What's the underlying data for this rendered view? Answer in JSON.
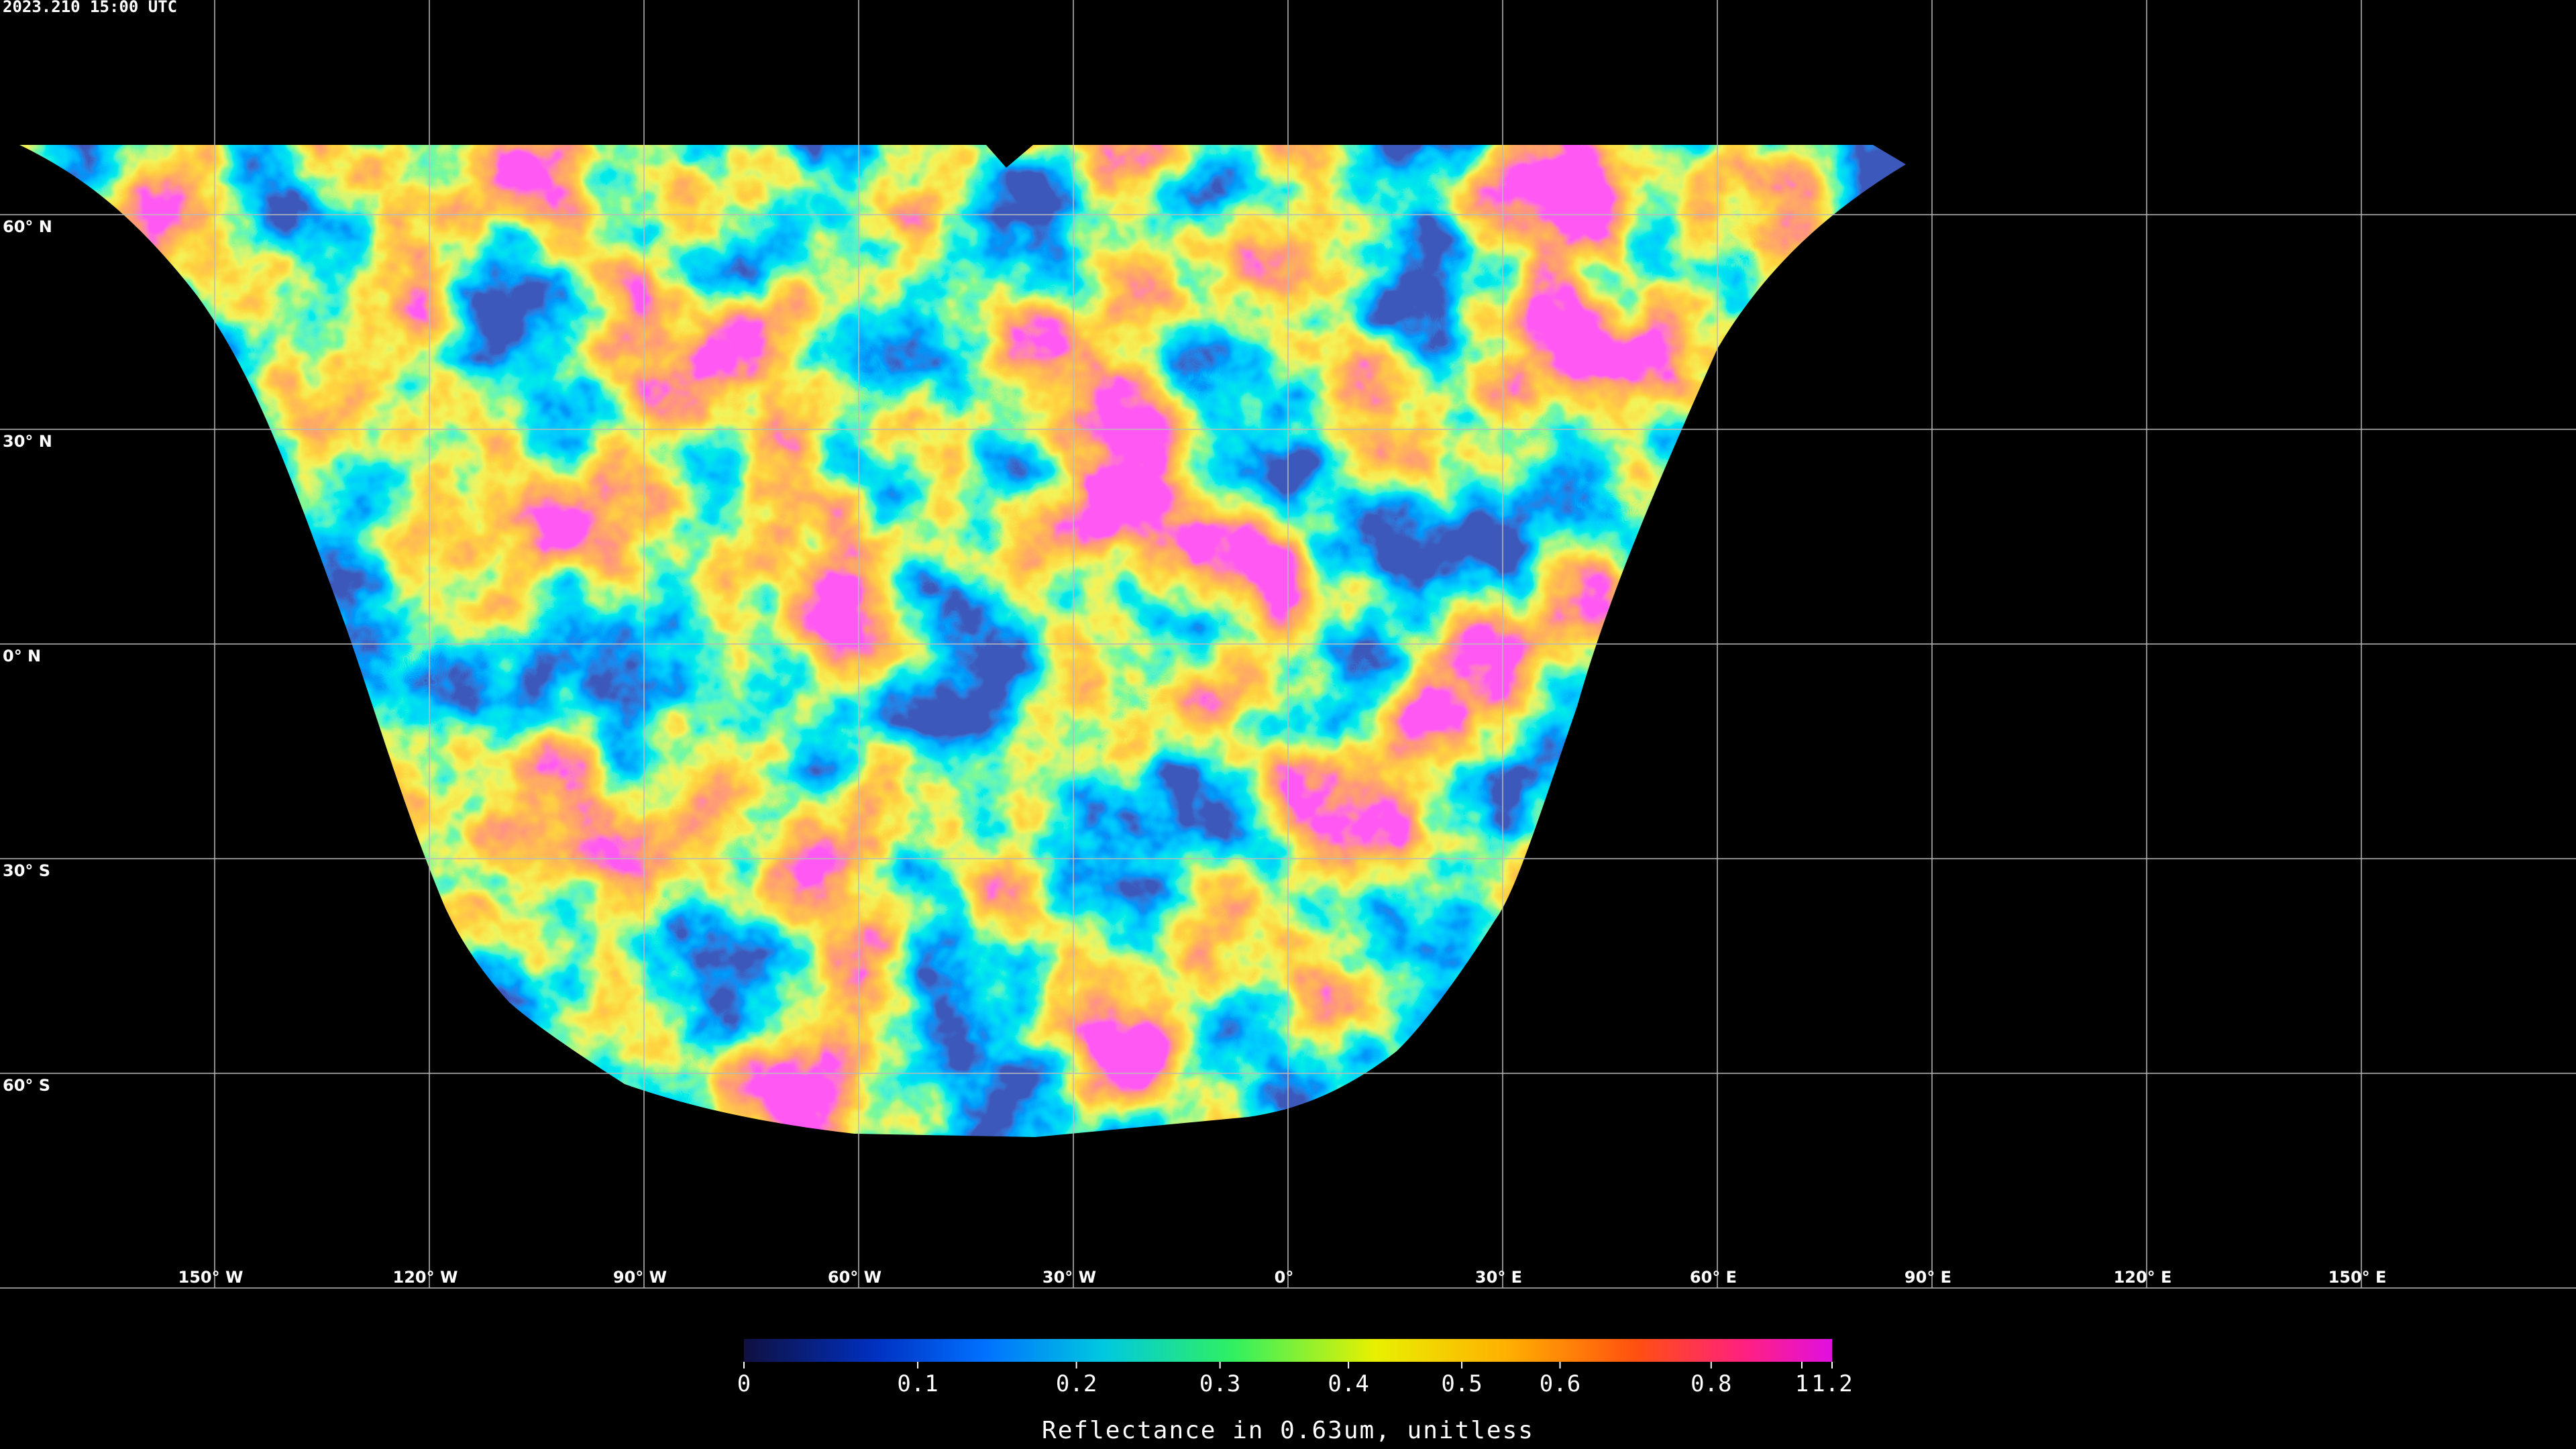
{
  "timestamp": "2023.210 15:00 UTC",
  "map": {
    "lat_lines": [
      {
        "value": 60,
        "label": "60° N"
      },
      {
        "value": 30,
        "label": "30° N"
      },
      {
        "value": 0,
        "label": "0° N"
      },
      {
        "value": -30,
        "label": "30° S"
      },
      {
        "value": -60,
        "label": "60° S"
      }
    ],
    "lon_lines": [
      {
        "value": -150,
        "label": "150° W"
      },
      {
        "value": -120,
        "label": "120° W"
      },
      {
        "value": -90,
        "label": "90° W"
      },
      {
        "value": -60,
        "label": "60° W"
      },
      {
        "value": -30,
        "label": "30° W"
      },
      {
        "value": 0,
        "label": "0°"
      },
      {
        "value": 30,
        "label": "30° E"
      },
      {
        "value": 60,
        "label": "60° E"
      },
      {
        "value": 90,
        "label": "90° E"
      },
      {
        "value": 120,
        "label": "120° E"
      },
      {
        "value": 150,
        "label": "150° E"
      }
    ]
  },
  "colorbar": {
    "label": "Reflectance in 0.63um, unitless",
    "clim": [
      0,
      1.2
    ],
    "ticks": [
      0,
      0.1,
      0.2,
      0.3,
      0.4,
      0.5,
      0.6,
      0.8,
      1,
      1.2
    ]
  }
}
